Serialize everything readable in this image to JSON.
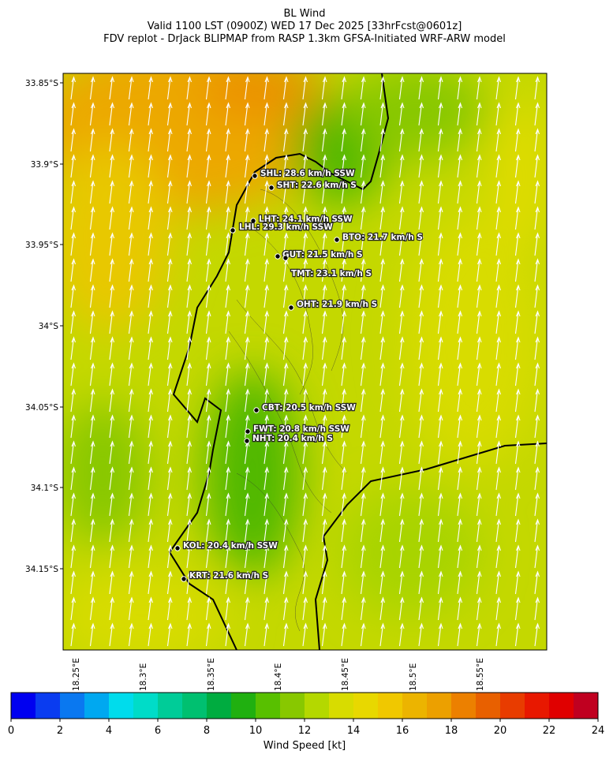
{
  "header": {
    "title": "BL Wind",
    "subtitle": "Valid 1100 LST (0900Z) WED 17 Dec 2025 [33hrFcst@0601z]",
    "source": "FDV replot - DrJack BLIPMAP from RASP 1.3km GFSA-Initiated WRF-ARW model"
  },
  "map": {
    "lat_labels": [
      "33.85°S",
      "33.9°S",
      "33.95°S",
      "34°S",
      "34.05°S",
      "34.1°S",
      "34.15°S"
    ],
    "lon_labels": [
      "18.25°E",
      "18.3°E",
      "18.35°E",
      "18.4°E",
      "18.45°E",
      "18.5°E",
      "18.55°E"
    ],
    "stations": [
      "SHL: 28.6 km/h SSW",
      "SHT: 22.6 km/h S",
      "LHT: 24.1 km/h SSW",
      "LHL: 29.3 km/h SSW",
      "BTO: 21.7 km/h S",
      "GUT: 21.5 km/h S",
      "TMT: 23.1 km/h S",
      "OHT: 21.9 km/h S",
      "CBT: 20.5 km/h SSW",
      "FWT: 20.8 km/h SSW",
      "NHT: 20.4 km/h S",
      "KOL: 20.4 km/h SSW",
      "KRT: 21.6 km/h S"
    ]
  },
  "colorbar": {
    "label": "Wind Speed [kt]",
    "ticks": [
      0,
      2,
      4,
      6,
      8,
      10,
      12,
      14,
      16,
      18,
      20,
      22,
      24
    ],
    "colors": [
      "#0000f0",
      "#0a3cf0",
      "#0a78f0",
      "#00a8f0",
      "#00dcec",
      "#00dcc8",
      "#00cc98",
      "#00c070",
      "#00ac40",
      "#20b010",
      "#58c000",
      "#88c800",
      "#b4d800",
      "#d8dc00",
      "#e8d800",
      "#f0c800",
      "#ecb400",
      "#eca000",
      "#ec8000",
      "#e86000",
      "#e83c00",
      "#e81800",
      "#e00000",
      "#c00020"
    ]
  }
}
